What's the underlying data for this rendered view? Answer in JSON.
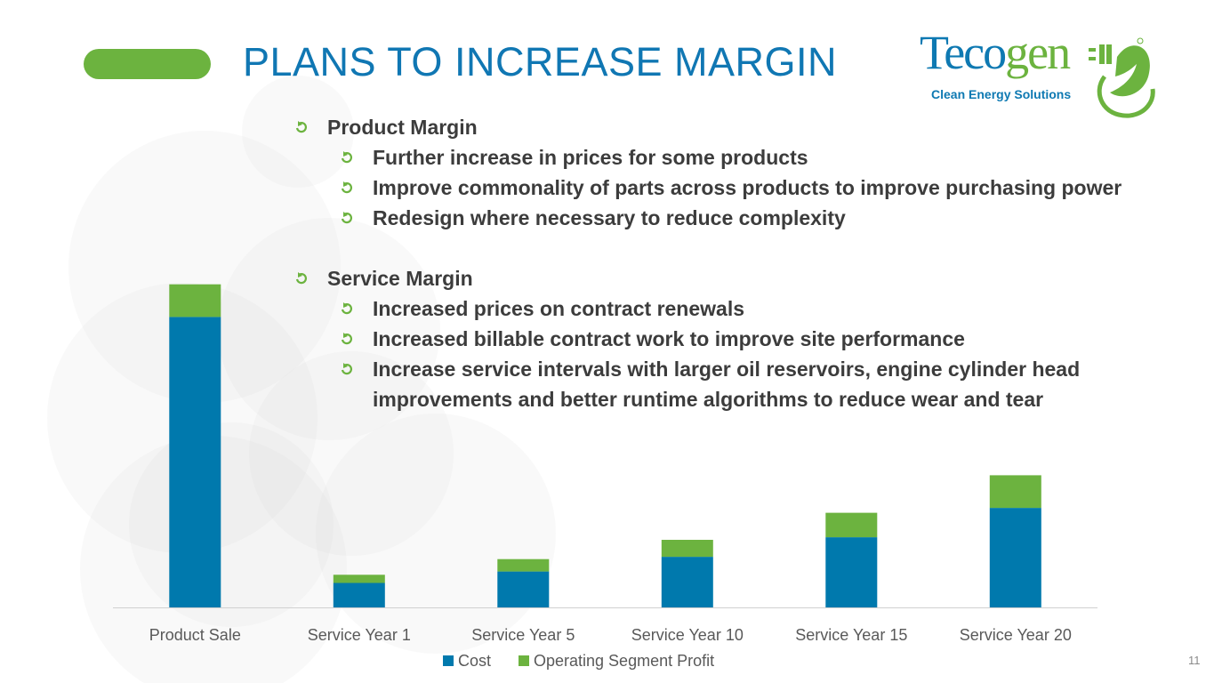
{
  "title": "PLANS TO INCREASE MARGIN",
  "logo": {
    "word_part1": "Teco",
    "word_part2": "gen",
    "tagline": "Clean Energy Solutions"
  },
  "bullets": [
    {
      "level": 1,
      "text": "Product Margin"
    },
    {
      "level": 2,
      "text": "Further increase in prices for some products"
    },
    {
      "level": 2,
      "text": "Improve commonality of parts across products to improve purchasing power"
    },
    {
      "level": 2,
      "text": "Redesign where necessary to reduce complexity"
    },
    {
      "level": 1,
      "text": "Service Margin"
    },
    {
      "level": 2,
      "text": "Increased prices on contract renewals"
    },
    {
      "level": 2,
      "text": "Increased billable contract work to improve site performance"
    },
    {
      "level": 2,
      "text": "Increase service intervals with larger oil reservoirs, engine cylinder head improvements and better runtime algorithms to reduce wear and tear"
    }
  ],
  "page_number": "11",
  "colors": {
    "blue": "#0079ad",
    "green": "#6cb33f",
    "title_blue": "#1077b3",
    "bullet_text": "#3c3c3c",
    "bubble": "#d9d9d9"
  },
  "chart_data": {
    "type": "bar",
    "stacked": true,
    "categories": [
      "Product Sale",
      "Service Year 1",
      "Service Year 5",
      "Service Year 10",
      "Service Year 15",
      "Service Year 20"
    ],
    "series": [
      {
        "name": "Cost",
        "color": "#0079ad",
        "values": [
          89,
          7.5,
          11,
          15.5,
          21.5,
          30.5
        ]
      },
      {
        "name": "Operating Segment Profit",
        "color": "#6cb33f",
        "values": [
          10,
          2.5,
          3.8,
          5.2,
          7.5,
          10
        ]
      }
    ],
    "ylim": [
      0,
      100
    ],
    "title": "",
    "xlabel": "",
    "ylabel": "",
    "legend": "bottom",
    "grid": false
  }
}
